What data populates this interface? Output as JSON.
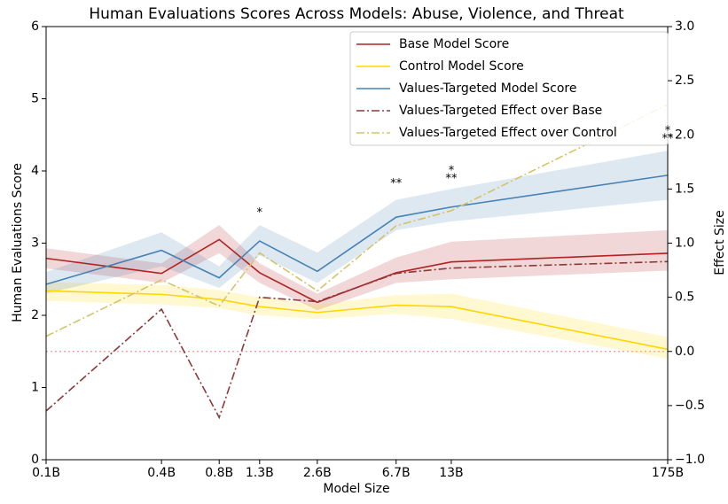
{
  "chart_data": {
    "type": "line",
    "title": "Human Evaluations Scores Across Models: Abuse, Violence, and Threat",
    "x_label": "Model Size",
    "y_label": "Human Evaluations Score",
    "y2_label": "Effect Size",
    "x_scale": "log",
    "x": [
      0.1,
      0.4,
      0.8,
      1.3,
      2.6,
      6.7,
      13,
      175
    ],
    "xlim": [
      0.1,
      175
    ],
    "xticks": [
      {
        "value": 0.1,
        "label": "0.1B"
      },
      {
        "value": 0.4,
        "label": "0.4B"
      },
      {
        "value": 0.8,
        "label": "0.8B"
      },
      {
        "value": 1.3,
        "label": "1.3B"
      },
      {
        "value": 2.6,
        "label": "2.6B"
      },
      {
        "value": 6.7,
        "label": "6.7B"
      },
      {
        "value": 13,
        "label": "13B"
      },
      {
        "value": 175,
        "label": "175B"
      }
    ],
    "ylim": [
      0,
      6
    ],
    "yticks": [
      0,
      1,
      2,
      3,
      4,
      5,
      6
    ],
    "y2lim": [
      -1,
      3
    ],
    "y2ticks": [
      {
        "value": -1,
        "label": "−1.0"
      },
      {
        "value": -0.5,
        "label": "−0.5"
      },
      {
        "value": 0,
        "label": "0.0"
      },
      0.5,
      {
        "value": 1,
        "label": "1.0"
      },
      1.5,
      {
        "value": 2,
        "label": "2.0"
      },
      2.5,
      {
        "value": 3,
        "label": "3.0"
      }
    ],
    "legend": "upper right",
    "series": [
      {
        "name": "Base Model Score",
        "color": "#b22222",
        "linestyle": "solid",
        "values": [
          2.79,
          2.58,
          3.05,
          2.59,
          2.18,
          2.59,
          2.74,
          2.86
        ],
        "lower": [
          2.65,
          2.45,
          2.86,
          2.45,
          2.07,
          2.45,
          2.5,
          2.62
        ],
        "upper": [
          2.93,
          2.72,
          3.25,
          2.72,
          2.3,
          2.8,
          3.02,
          3.18
        ]
      },
      {
        "name": "Control Model Score",
        "color": "#ffd700",
        "linestyle": "solid",
        "values": [
          2.34,
          2.29,
          2.22,
          2.12,
          2.04,
          2.14,
          2.12,
          1.53
        ],
        "lower": [
          2.2,
          2.15,
          2.1,
          2.0,
          1.95,
          2.02,
          1.95,
          1.4
        ],
        "upper": [
          2.46,
          2.42,
          2.35,
          2.25,
          2.15,
          2.28,
          2.3,
          1.7
        ]
      },
      {
        "name": "Values-Targeted Model Score",
        "color": "#4682b4",
        "linestyle": "solid",
        "values": [
          2.43,
          2.9,
          2.52,
          3.03,
          2.61,
          3.36,
          3.5,
          3.94
        ],
        "lower": [
          2.3,
          2.68,
          2.38,
          2.83,
          2.45,
          3.18,
          3.3,
          3.6
        ],
        "upper": [
          2.6,
          3.15,
          2.68,
          3.25,
          2.87,
          3.6,
          3.75,
          4.28
        ]
      },
      {
        "name": "Values-Targeted Effect over Base",
        "color": "#8b3a3a",
        "linestyle": "dashdot",
        "axis": "y2",
        "values": [
          -0.55,
          0.39,
          -0.61,
          0.5,
          0.46,
          0.72,
          0.77,
          0.83
        ]
      },
      {
        "name": "Values-Targeted Effect over Control",
        "color": "#d4c36a",
        "linestyle": "dashdot",
        "axis": "y2",
        "values": [
          0.14,
          0.66,
          0.42,
          0.91,
          0.56,
          1.16,
          1.3,
          2.28
        ]
      }
    ],
    "hline": {
      "value": 0,
      "axis": "y2",
      "color": "#f4a6a6"
    },
    "annotations": [
      {
        "text": "*",
        "x": 1.3,
        "y": 3.42,
        "color": "#ffc000"
      },
      {
        "text": "**",
        "x": 6.7,
        "y": 3.82,
        "color": "#ffc000"
      },
      {
        "text": "*",
        "x": 13,
        "y": 4.0,
        "color": "#b22222"
      },
      {
        "text": "**",
        "x": 13,
        "y": 3.89,
        "color": "#ffc000"
      },
      {
        "text": "*",
        "x": 175,
        "y": 4.55,
        "color": "#b22222"
      },
      {
        "text": "**",
        "x": 175,
        "y": 4.44,
        "color": "#ffc000"
      }
    ]
  }
}
